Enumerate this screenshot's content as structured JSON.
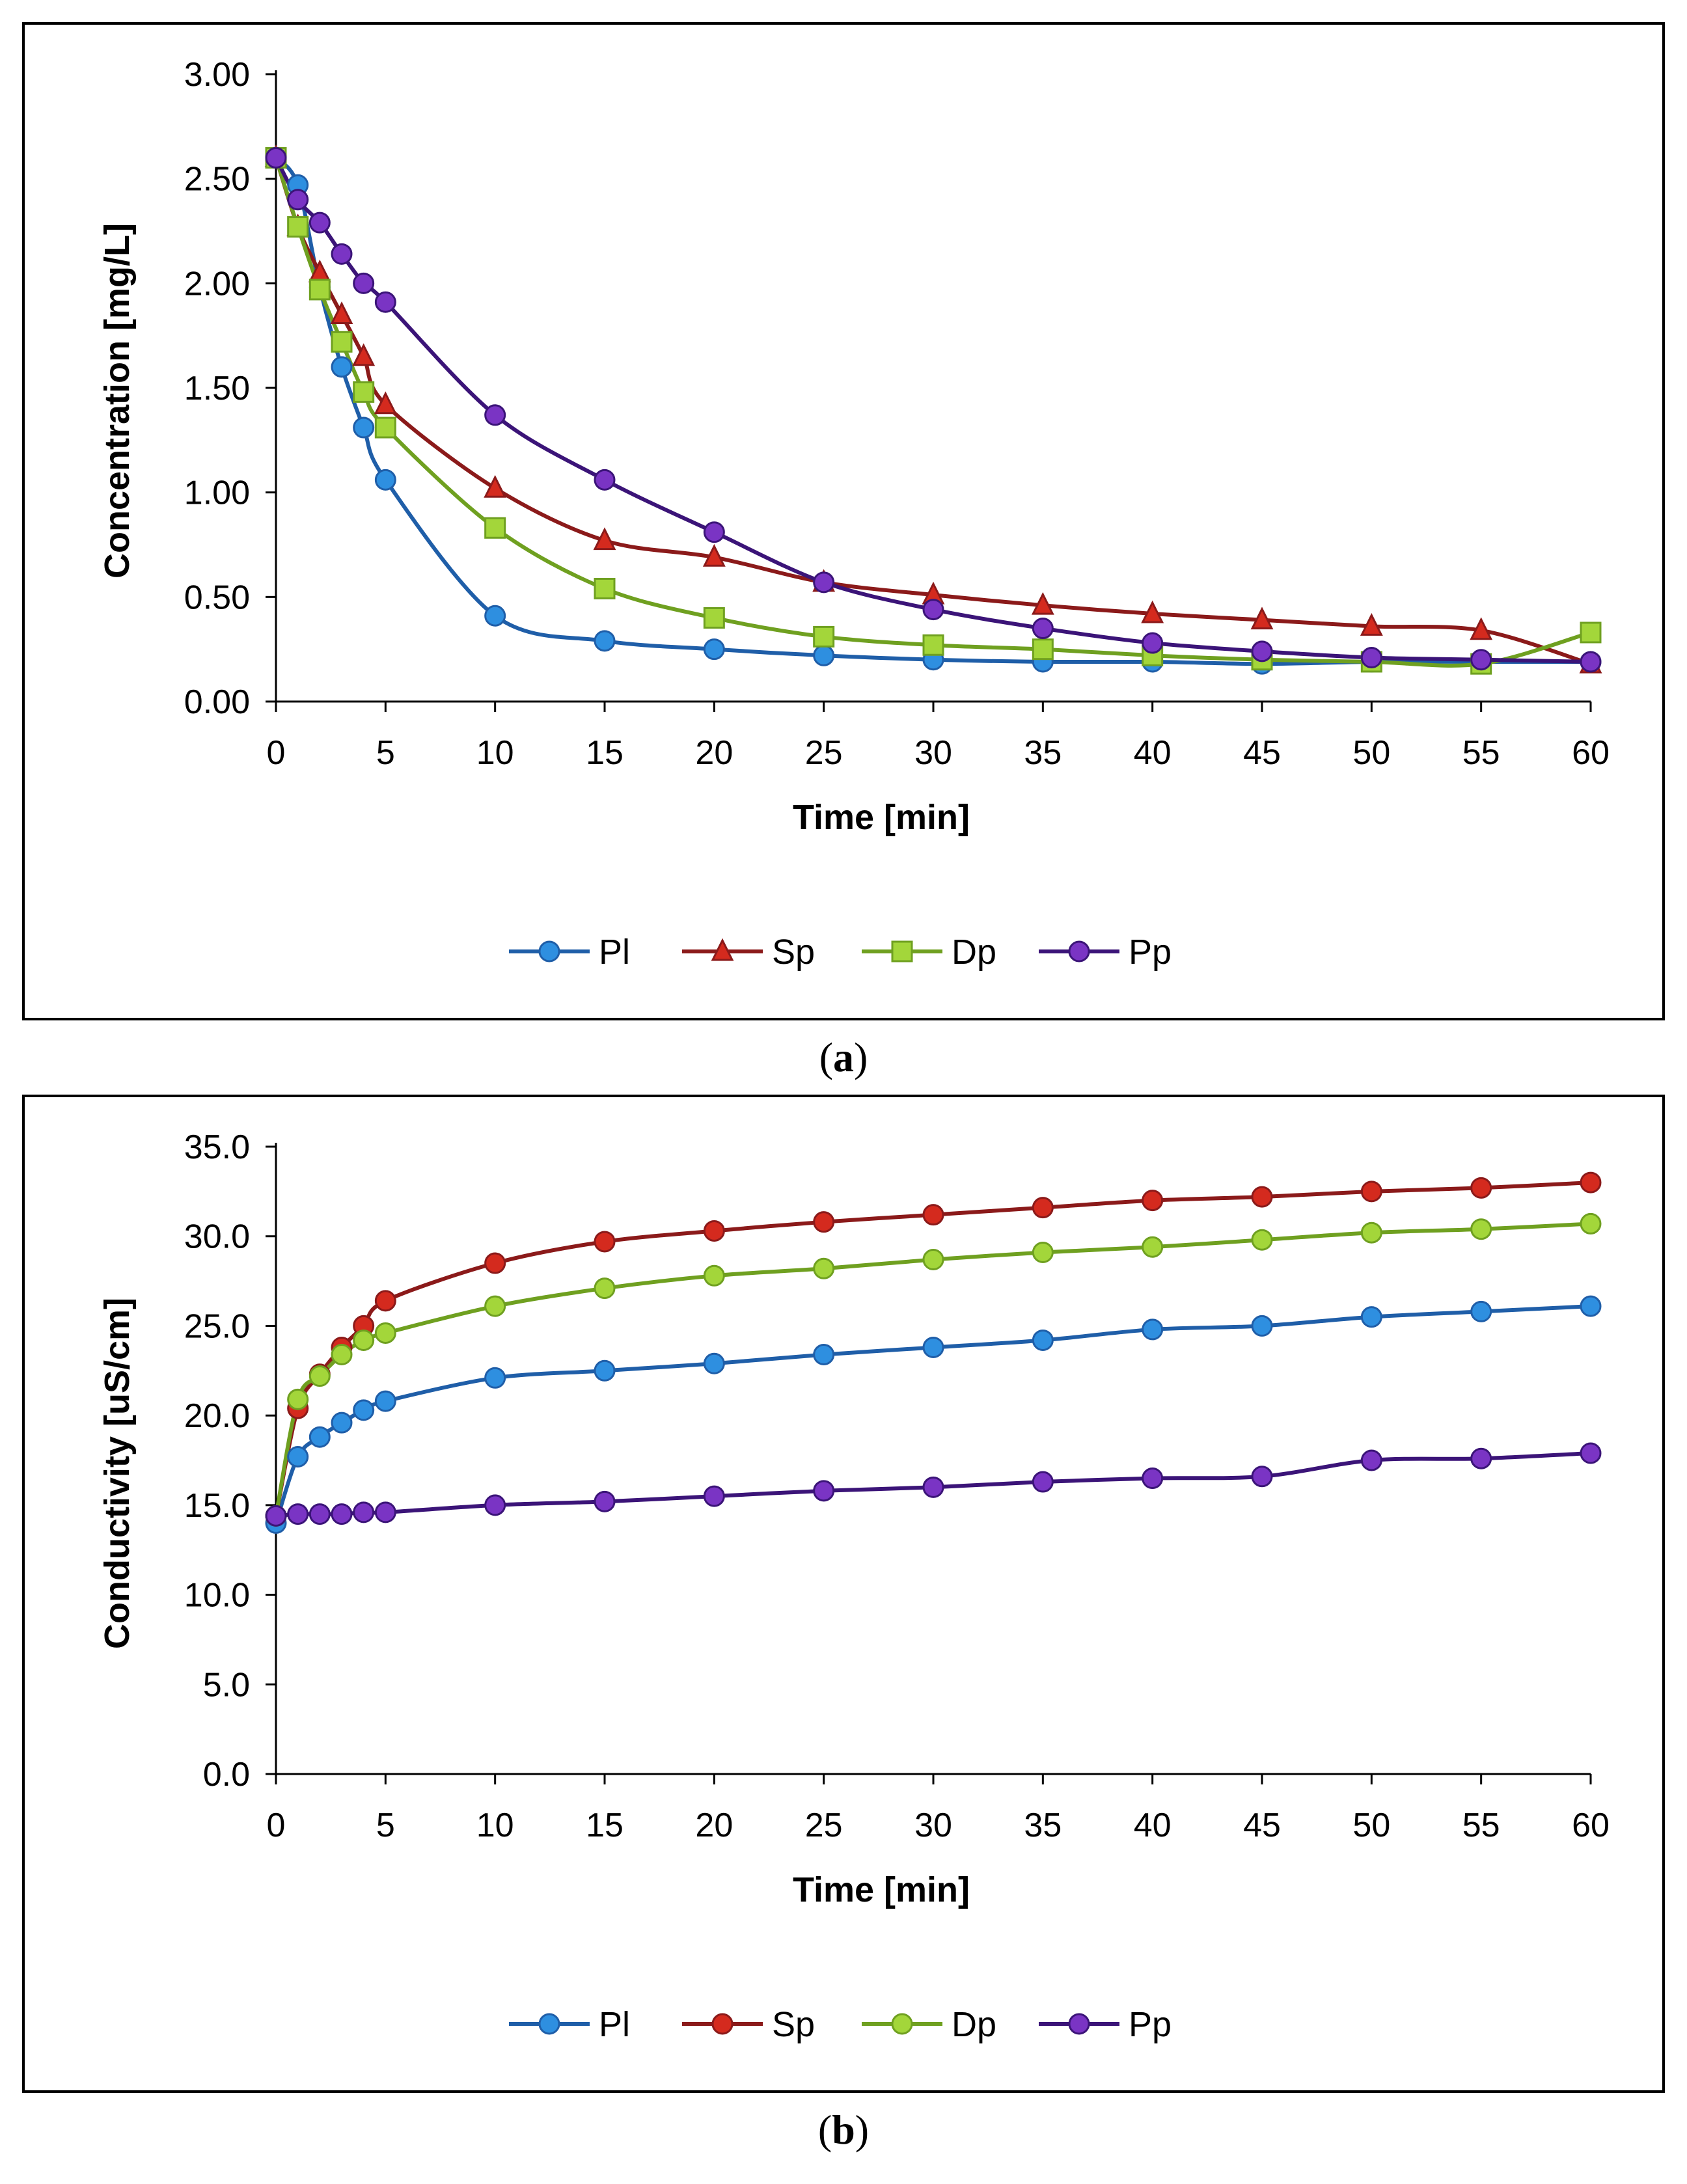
{
  "chart_data": [
    {
      "id": "a",
      "type": "line",
      "caption": "(a)",
      "caption_letter": "a",
      "xlabel": "Time [min]",
      "ylabel": "Concentration [mg/L]",
      "x": [
        0,
        1,
        2,
        3,
        4,
        5,
        10,
        15,
        20,
        25,
        30,
        35,
        40,
        45,
        50,
        55,
        60
      ],
      "xticks": [
        0,
        5,
        10,
        15,
        20,
        25,
        30,
        35,
        40,
        45,
        50,
        55,
        60
      ],
      "xlim": [
        0,
        60
      ],
      "ylim": [
        0,
        3
      ],
      "yticks": [
        0,
        0.5,
        1,
        1.5,
        2,
        2.5,
        3
      ],
      "ytick_decimals": 2,
      "legend_position": "bottom",
      "series": [
        {
          "name": "Pl",
          "color": "#1f5ea8",
          "fill": "#2e8fe0",
          "marker": "circle",
          "values": [
            2.6,
            2.47,
            1.98,
            1.6,
            1.31,
            1.06,
            0.41,
            0.29,
            0.25,
            0.22,
            0.2,
            0.19,
            0.19,
            0.18,
            0.19,
            0.19,
            0.19
          ]
        },
        {
          "name": "Sp",
          "color": "#8b1a1a",
          "fill": "#d42a1e",
          "marker": "triangle",
          "values": [
            2.6,
            2.27,
            2.05,
            1.85,
            1.65,
            1.42,
            1.02,
            0.77,
            0.69,
            0.57,
            0.51,
            0.46,
            0.42,
            0.39,
            0.36,
            0.34,
            0.18
          ]
        },
        {
          "name": "Dp",
          "color": "#6fa020",
          "fill": "#a3d63a",
          "marker": "square",
          "values": [
            2.6,
            2.27,
            1.97,
            1.72,
            1.48,
            1.31,
            0.83,
            0.54,
            0.4,
            0.31,
            0.27,
            0.25,
            0.22,
            0.2,
            0.19,
            0.18,
            0.33
          ]
        },
        {
          "name": "Pp",
          "color": "#3b1478",
          "fill": "#7a34c4",
          "marker": "circle",
          "values": [
            2.6,
            2.4,
            2.29,
            2.14,
            2.0,
            1.91,
            1.37,
            1.06,
            0.81,
            0.57,
            0.44,
            0.35,
            0.28,
            0.24,
            0.21,
            0.2,
            0.19
          ]
        }
      ]
    },
    {
      "id": "b",
      "type": "line",
      "caption": "(b)",
      "caption_letter": "b",
      "xlabel": "Time [min]",
      "ylabel": "Conductivity [uS/cm]",
      "x": [
        0,
        1,
        2,
        3,
        4,
        5,
        10,
        15,
        20,
        25,
        30,
        35,
        40,
        45,
        50,
        55,
        60
      ],
      "xticks": [
        0,
        5,
        10,
        15,
        20,
        25,
        30,
        35,
        40,
        45,
        50,
        55,
        60
      ],
      "xlim": [
        0,
        60
      ],
      "ylim": [
        0,
        35
      ],
      "yticks": [
        0,
        5,
        10,
        15,
        20,
        25,
        30,
        35
      ],
      "ytick_decimals": 1,
      "legend_position": "bottom",
      "series": [
        {
          "name": "Pl",
          "color": "#1f5ea8",
          "fill": "#2e8fe0",
          "marker": "circle",
          "values": [
            14.0,
            17.7,
            18.8,
            19.6,
            20.3,
            20.8,
            22.1,
            22.5,
            22.9,
            23.4,
            23.8,
            24.2,
            24.8,
            25.0,
            25.5,
            25.8,
            26.1
          ]
        },
        {
          "name": "Sp",
          "color": "#8b1a1a",
          "fill": "#d42a1e",
          "marker": "circle",
          "values": [
            14.4,
            20.4,
            22.3,
            23.8,
            25.0,
            26.4,
            28.5,
            29.7,
            30.3,
            30.8,
            31.2,
            31.6,
            32.0,
            32.2,
            32.5,
            32.7,
            33.0
          ]
        },
        {
          "name": "Dp",
          "color": "#6fa020",
          "fill": "#a3d63a",
          "marker": "circle",
          "values": [
            14.4,
            20.9,
            22.2,
            23.4,
            24.2,
            24.6,
            26.1,
            27.1,
            27.8,
            28.2,
            28.7,
            29.1,
            29.4,
            29.8,
            30.2,
            30.4,
            30.7
          ]
        },
        {
          "name": "Pp",
          "color": "#3b1478",
          "fill": "#7a34c4",
          "marker": "circle",
          "values": [
            14.4,
            14.5,
            14.5,
            14.5,
            14.6,
            14.6,
            15.0,
            15.2,
            15.5,
            15.8,
            16.0,
            16.3,
            16.5,
            16.6,
            17.5,
            17.6,
            17.9
          ]
        }
      ]
    }
  ]
}
